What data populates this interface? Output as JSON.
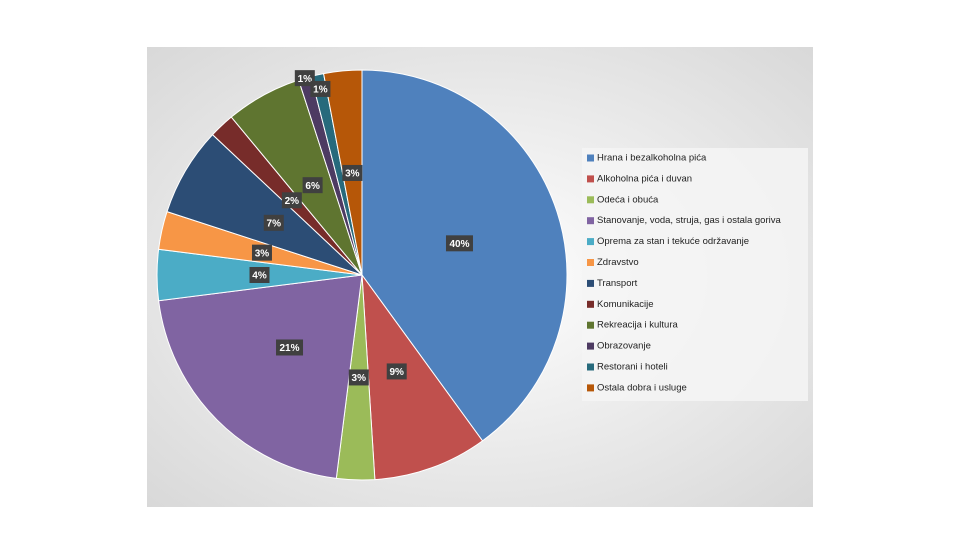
{
  "chart_data": {
    "type": "pie",
    "categories": [
      "Hrana i bezalkoholna pića",
      "Alkoholna pića i duvan",
      "Odeća i obuća",
      "Stanovanje, voda, struja, gas i ostala goriva",
      "Oprema za stan i tekuće održavanje",
      "Zdravstvo",
      "Transport",
      "Komunikacije",
      "Rekreacija i kultura",
      "Obrazovanje",
      "Restorani i hoteli",
      "Ostala dobra i usluge"
    ],
    "values": [
      40,
      9,
      3,
      21,
      4,
      3,
      7,
      2,
      6,
      1,
      1,
      3
    ],
    "value_labels": [
      "40%",
      "9%",
      "3%",
      "21%",
      "4%",
      "3%",
      "7%",
      "2%",
      "6%",
      "1%",
      "1%",
      "3%"
    ],
    "colors": [
      "#4f81bd",
      "#c0504d",
      "#9bbb59",
      "#8064a2",
      "#4bacc6",
      "#f79646",
      "#2c4d75",
      "#772c2a",
      "#5f7530",
      "#4d3b62",
      "#276a7c",
      "#b65708"
    ],
    "legend": "right"
  }
}
